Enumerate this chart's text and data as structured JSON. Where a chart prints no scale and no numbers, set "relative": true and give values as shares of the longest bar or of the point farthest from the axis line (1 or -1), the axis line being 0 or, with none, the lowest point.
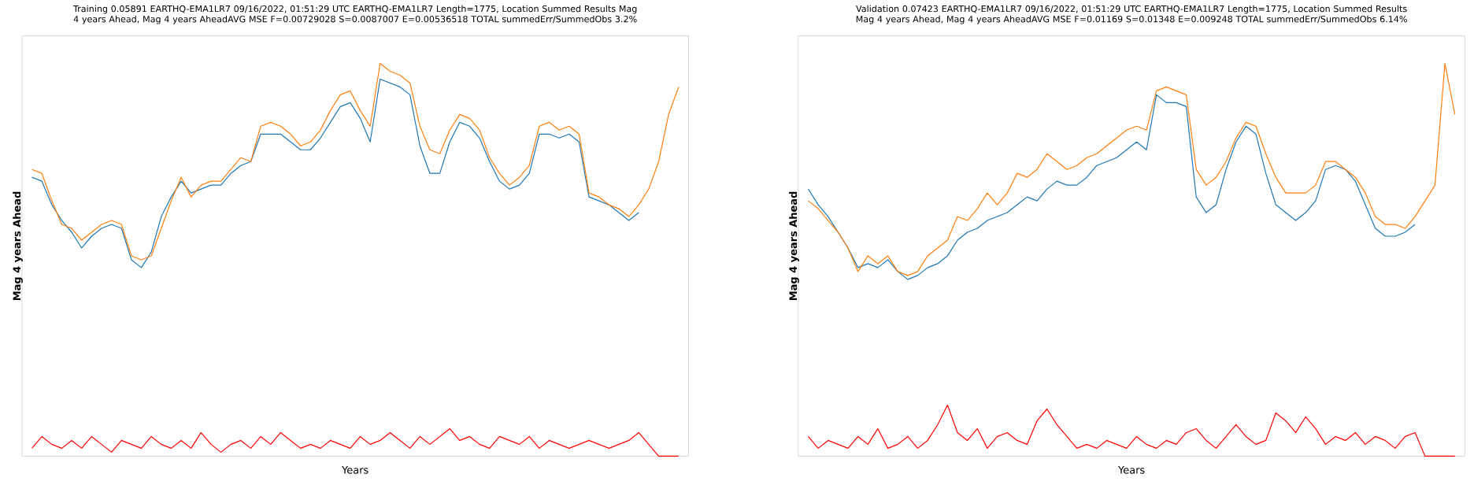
{
  "chart_data": [
    {
      "type": "line",
      "title": "Training 0.05891 EARTHQ-EMA1LR7 09/16/2022, 01:51:29 UTC EARTHQ-EMA1LR7 Length=1775, Location Summed Results Mag 4 years Ahead, Mag 4 years AheadAVG MSE F=0.00729028 S=0.0087007 E=0.00536518 TOTAL summedErr/SummedObs 3.2%",
      "xlabel": "Years",
      "ylabel": "Mag 4 years Ahead",
      "relative": true,
      "categories": [
        null,
        null,
        null,
        null,
        null,
        null,
        null,
        null,
        null,
        null,
        null,
        null,
        null,
        null,
        null,
        null,
        null,
        null,
        null,
        null,
        null,
        null,
        null,
        null,
        null,
        null,
        null,
        null,
        null,
        null,
        null,
        null,
        null,
        null,
        null,
        null,
        null,
        null,
        null,
        null,
        null,
        null,
        null,
        null,
        null,
        null,
        null,
        null,
        null,
        null,
        null,
        null,
        null,
        null,
        null,
        null,
        null,
        null,
        null,
        null,
        null,
        null,
        null,
        null,
        null,
        null
      ],
      "series": [
        {
          "color": "#1f77b4",
          "values": [
            0.71,
            0.7,
            0.64,
            0.6,
            0.57,
            0.53,
            0.56,
            0.58,
            0.59,
            0.58,
            0.5,
            0.48,
            0.52,
            0.61,
            0.66,
            0.7,
            0.67,
            0.68,
            0.69,
            0.69,
            0.72,
            0.74,
            0.75,
            0.82,
            0.82,
            0.82,
            0.8,
            0.78,
            0.78,
            0.81,
            0.85,
            0.89,
            0.9,
            0.86,
            0.8,
            0.96,
            0.95,
            0.94,
            0.92,
            0.79,
            0.72,
            0.72,
            0.8,
            0.85,
            0.84,
            0.81,
            0.75,
            0.7,
            0.68,
            0.69,
            0.72,
            0.82,
            0.82,
            0.81,
            0.82,
            0.8,
            0.66,
            0.65,
            0.64,
            0.62,
            0.6,
            0.62,
            null,
            null,
            null,
            null
          ]
        },
        {
          "color": "#ff7f0e",
          "values": [
            0.73,
            0.72,
            0.65,
            0.59,
            0.58,
            0.55,
            0.57,
            0.59,
            0.6,
            0.59,
            0.51,
            0.5,
            0.51,
            0.58,
            0.65,
            0.71,
            0.66,
            0.69,
            0.7,
            0.7,
            0.73,
            0.76,
            0.75,
            0.84,
            0.85,
            0.84,
            0.82,
            0.79,
            0.8,
            0.83,
            0.88,
            0.92,
            0.93,
            0.88,
            0.84,
            1.0,
            0.98,
            0.97,
            0.95,
            0.84,
            0.78,
            0.77,
            0.83,
            0.87,
            0.86,
            0.83,
            0.76,
            0.72,
            0.69,
            0.71,
            0.74,
            0.84,
            0.85,
            0.83,
            0.84,
            0.82,
            0.67,
            0.66,
            0.64,
            0.63,
            0.61,
            0.64,
            0.68,
            0.75,
            0.87,
            0.94
          ]
        },
        {
          "color": "#ff0000",
          "values": [
            0.02,
            0.05,
            0.03,
            0.02,
            0.04,
            0.02,
            0.05,
            0.03,
            0.01,
            0.04,
            0.03,
            0.02,
            0.05,
            0.03,
            0.02,
            0.04,
            0.02,
            0.06,
            0.03,
            0.01,
            0.03,
            0.04,
            0.02,
            0.05,
            0.03,
            0.06,
            0.04,
            0.02,
            0.03,
            0.02,
            0.04,
            0.03,
            0.02,
            0.05,
            0.03,
            0.04,
            0.06,
            0.04,
            0.02,
            0.05,
            0.03,
            0.05,
            0.07,
            0.04,
            0.05,
            0.03,
            0.02,
            0.05,
            0.04,
            0.03,
            0.05,
            0.02,
            0.04,
            0.03,
            0.02,
            0.03,
            0.04,
            0.03,
            0.02,
            0.03,
            0.04,
            0.06,
            0.03,
            0.0,
            0.0,
            0.0
          ]
        }
      ]
    },
    {
      "type": "line",
      "title": "Validation 0.07423 EARTHQ-EMA1LR7 09/16/2022, 01:51:29 UTC EARTHQ-EMA1LR7 Length=1775, Location Summed Results Mag 4 years Ahead, Mag 4 years AheadAVG MSE F=0.01169 S=0.01348 E=0.009248 TOTAL summedErr/SummedObs 6.14%",
      "xlabel": "Years",
      "ylabel": "Mag 4 years Ahead",
      "relative": true,
      "categories": [
        null,
        null,
        null,
        null,
        null,
        null,
        null,
        null,
        null,
        null,
        null,
        null,
        null,
        null,
        null,
        null,
        null,
        null,
        null,
        null,
        null,
        null,
        null,
        null,
        null,
        null,
        null,
        null,
        null,
        null,
        null,
        null,
        null,
        null,
        null,
        null,
        null,
        null,
        null,
        null,
        null,
        null,
        null,
        null,
        null,
        null,
        null,
        null,
        null,
        null,
        null,
        null,
        null,
        null,
        null,
        null,
        null,
        null,
        null,
        null,
        null,
        null,
        null,
        null,
        null,
        null
      ],
      "series": [
        {
          "color": "#1f77b4",
          "values": [
            0.68,
            0.64,
            0.61,
            0.57,
            0.53,
            0.48,
            0.49,
            0.48,
            0.5,
            0.47,
            0.45,
            0.46,
            0.48,
            0.49,
            0.51,
            0.55,
            0.57,
            0.58,
            0.6,
            0.61,
            0.62,
            0.64,
            0.66,
            0.65,
            0.68,
            0.7,
            0.69,
            0.69,
            0.71,
            0.74,
            0.75,
            0.76,
            0.78,
            0.8,
            0.78,
            0.92,
            0.9,
            0.9,
            0.89,
            0.66,
            0.62,
            0.64,
            0.73,
            0.8,
            0.84,
            0.82,
            0.72,
            0.64,
            0.62,
            0.6,
            0.62,
            0.65,
            0.73,
            0.74,
            0.73,
            0.7,
            0.64,
            0.58,
            0.56,
            0.56,
            0.57,
            0.59,
            null,
            null,
            null,
            null
          ]
        },
        {
          "color": "#ff7f0e",
          "values": [
            0.65,
            0.63,
            0.6,
            0.57,
            0.53,
            0.47,
            0.51,
            0.49,
            0.51,
            0.47,
            0.46,
            0.47,
            0.51,
            0.53,
            0.55,
            0.61,
            0.6,
            0.63,
            0.67,
            0.64,
            0.67,
            0.72,
            0.71,
            0.73,
            0.77,
            0.75,
            0.73,
            0.74,
            0.76,
            0.77,
            0.79,
            0.81,
            0.83,
            0.84,
            0.83,
            0.93,
            0.94,
            0.93,
            0.92,
            0.73,
            0.69,
            0.71,
            0.75,
            0.81,
            0.85,
            0.84,
            0.77,
            0.71,
            0.67,
            0.67,
            0.67,
            0.69,
            0.75,
            0.75,
            0.73,
            0.71,
            0.67,
            0.61,
            0.59,
            0.59,
            0.58,
            0.61,
            0.65,
            0.69,
            1.0,
            0.87
          ]
        },
        {
          "color": "#ff0000",
          "values": [
            0.05,
            0.02,
            0.04,
            0.03,
            0.02,
            0.05,
            0.03,
            0.07,
            0.02,
            0.03,
            0.05,
            0.02,
            0.04,
            0.08,
            0.13,
            0.06,
            0.04,
            0.07,
            0.02,
            0.05,
            0.06,
            0.04,
            0.03,
            0.09,
            0.12,
            0.08,
            0.05,
            0.02,
            0.03,
            0.02,
            0.04,
            0.03,
            0.02,
            0.05,
            0.03,
            0.02,
            0.04,
            0.03,
            0.06,
            0.07,
            0.04,
            0.02,
            0.05,
            0.08,
            0.05,
            0.03,
            0.04,
            0.11,
            0.09,
            0.06,
            0.1,
            0.07,
            0.03,
            0.05,
            0.04,
            0.06,
            0.03,
            0.05,
            0.04,
            0.02,
            0.05,
            0.06,
            0.0,
            0.0,
            0.0,
            0.0
          ]
        }
      ]
    }
  ]
}
